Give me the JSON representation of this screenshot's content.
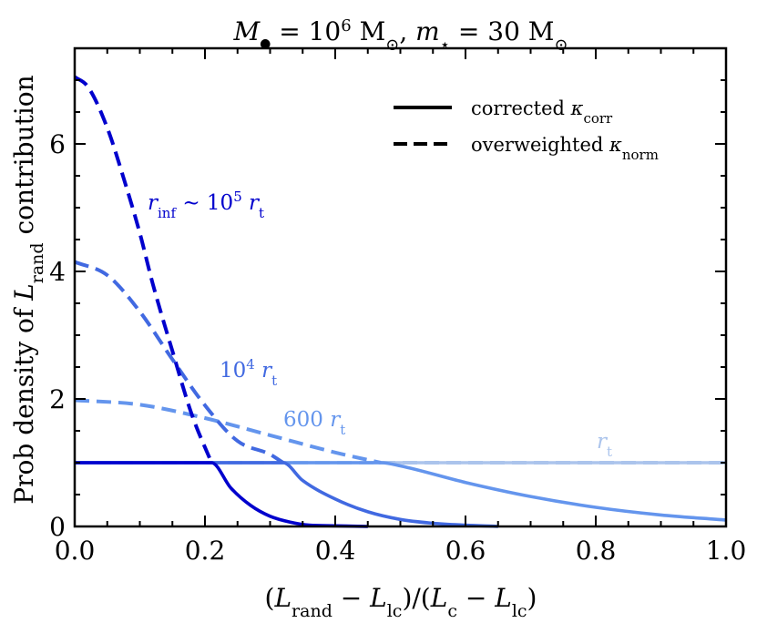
{
  "chart_data": {
    "type": "line",
    "title": "M• = 10⁶ M⊙,  m⋆ = 30 M⊙",
    "xlabel": "(L_rand − L_lc)/(L_c − L_lc)",
    "ylabel": "Prob density of L_rand contribution",
    "xlim": [
      0,
      1
    ],
    "ylim": [
      0,
      7.5
    ],
    "xticks": [
      "0.0",
      "0.2",
      "0.4",
      "0.6",
      "0.8",
      "1.0"
    ],
    "xtick_values": [
      0,
      0.2,
      0.4,
      0.6,
      0.8,
      1.0
    ],
    "yticks": [
      "0",
      "2",
      "4",
      "6"
    ],
    "ytick_values": [
      0,
      2,
      4,
      6
    ],
    "grid": false,
    "legend_position": "top-right",
    "legend": [
      {
        "label": "corrected κ_corr",
        "style": "solid"
      },
      {
        "label": "overweighted κ_norm",
        "style": "dashed"
      }
    ],
    "series": [
      {
        "annotation": "r_t",
        "color": "#abc4ec",
        "corrected": {
          "x": [
            0,
            0.2,
            0.4,
            0.6,
            0.8,
            1.0
          ],
          "y": [
            1,
            1,
            1,
            1,
            1,
            1
          ]
        },
        "overweighted": {
          "x": [
            0,
            0.2,
            0.4,
            0.6,
            0.8,
            1.0
          ],
          "y": [
            1,
            1,
            1,
            1,
            1,
            1
          ]
        }
      },
      {
        "annotation": "600 r_t",
        "color": "#6495ed",
        "corrected": {
          "x": [
            0,
            0.1,
            0.2,
            0.3,
            0.4,
            0.47,
            0.5,
            0.6,
            0.7,
            0.8,
            0.9,
            1.0
          ],
          "y": [
            1,
            1,
            1,
            1,
            1,
            1,
            0.95,
            0.69,
            0.47,
            0.3,
            0.18,
            0.1
          ]
        },
        "overweighted": {
          "x": [
            0,
            0.1,
            0.2,
            0.3,
            0.4,
            0.47
          ],
          "y": [
            1.98,
            1.91,
            1.7,
            1.43,
            1.16,
            1.0
          ]
        }
      },
      {
        "annotation": "10⁴ r_t",
        "color": "#4169e1",
        "corrected": {
          "x": [
            0,
            0.1,
            0.2,
            0.32,
            0.35,
            0.4,
            0.45,
            0.5,
            0.55,
            0.6,
            0.65
          ],
          "y": [
            1,
            1,
            1,
            1,
            0.72,
            0.43,
            0.23,
            0.11,
            0.05,
            0.02,
            0
          ]
        },
        "overweighted": {
          "x": [
            0,
            0.05,
            0.1,
            0.15,
            0.2,
            0.25,
            0.3,
            0.32
          ],
          "y": [
            4.15,
            3.94,
            3.37,
            2.62,
            1.9,
            1.34,
            1.13,
            1.0
          ]
        }
      },
      {
        "annotation": "r_inf ~ 10⁵ r_t",
        "color": "#0000cd",
        "corrected": {
          "x": [
            0,
            0.1,
            0.21,
            0.24,
            0.27,
            0.3,
            0.33,
            0.36,
            0.4,
            0.45
          ],
          "y": [
            1,
            1,
            1,
            0.6,
            0.33,
            0.16,
            0.07,
            0.02,
            0.01,
            0
          ]
        },
        "overweighted": {
          "x": [
            0,
            0.02,
            0.05,
            0.08,
            0.1,
            0.12,
            0.15,
            0.18,
            0.21
          ],
          "y": [
            7.05,
            6.9,
            6.25,
            5.3,
            4.6,
            3.8,
            2.75,
            1.75,
            1.0
          ]
        }
      }
    ]
  }
}
